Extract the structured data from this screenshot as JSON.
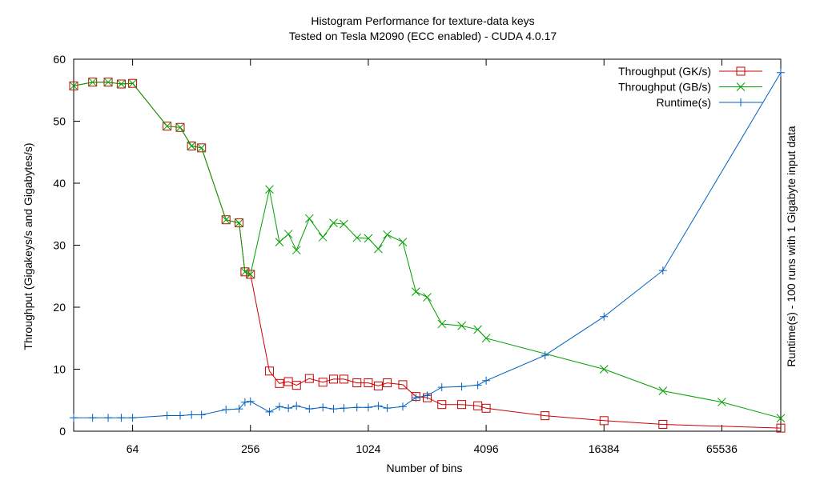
{
  "chart_data": {
    "type": "line",
    "title": "Histogram Performance for texture-data keys",
    "subtitle": "Tested on Tesla M2090 (ECC enabled) - CUDA 4.0.17",
    "xlabel": "Number of bins",
    "ylabel": "Throughput (Gigakeys/s and Gigabytes/s)",
    "y2label": "Runtime(s) - 100 runs with 1 Gigabyte input data",
    "x_scale": "log2",
    "xlim": [
      32,
      131072
    ],
    "ylim": [
      0,
      60
    ],
    "y2lim": [
      0,
      50
    ],
    "x_ticks": [
      {
        "value": 64,
        "label": "64"
      },
      {
        "value": 256,
        "label": "256"
      },
      {
        "value": 1024,
        "label": "1024"
      },
      {
        "value": 4096,
        "label": "4096"
      },
      {
        "value": 16384,
        "label": "16384"
      },
      {
        "value": 65536,
        "label": "65536"
      }
    ],
    "y_ticks": [
      {
        "value": 0,
        "label": "0"
      },
      {
        "value": 10,
        "label": "10"
      },
      {
        "value": 20,
        "label": "20"
      },
      {
        "value": 30,
        "label": "30"
      },
      {
        "value": 40,
        "label": "40"
      },
      {
        "value": 50,
        "label": "50"
      },
      {
        "value": 60,
        "label": "60"
      }
    ],
    "grid": false,
    "legend_position": "top-right",
    "series": [
      {
        "name": "Throughput (GK/s)",
        "axis": "y1",
        "marker": "square",
        "color": "#cc0000",
        "points": [
          [
            32,
            55.7
          ],
          [
            40,
            56.3
          ],
          [
            48,
            56.3
          ],
          [
            56,
            56.0
          ],
          [
            64,
            56.1
          ],
          [
            96,
            49.2
          ],
          [
            112,
            49.0
          ],
          [
            128,
            46.0
          ],
          [
            144,
            45.7
          ],
          [
            192,
            34.1
          ],
          [
            224,
            33.6
          ],
          [
            240,
            25.7
          ],
          [
            256,
            25.3
          ],
          [
            320,
            9.7
          ],
          [
            360,
            7.7
          ],
          [
            400,
            8.0
          ],
          [
            440,
            7.4
          ],
          [
            512,
            8.5
          ],
          [
            600,
            7.9
          ],
          [
            680,
            8.4
          ],
          [
            768,
            8.4
          ],
          [
            896,
            7.8
          ],
          [
            1024,
            7.8
          ],
          [
            1152,
            7.3
          ],
          [
            1280,
            7.8
          ],
          [
            1536,
            7.5
          ],
          [
            1792,
            5.6
          ],
          [
            2048,
            5.4
          ],
          [
            2432,
            4.3
          ],
          [
            3072,
            4.3
          ],
          [
            3712,
            4.1
          ],
          [
            4096,
            3.7
          ],
          [
            8192,
            2.5
          ],
          [
            16384,
            1.7
          ],
          [
            32768,
            1.1
          ],
          [
            131072,
            0.5
          ]
        ]
      },
      {
        "name": "Throughput (GB/s)",
        "axis": "y1",
        "marker": "x",
        "color": "#00a000",
        "points": [
          [
            32,
            55.7
          ],
          [
            40,
            56.3
          ],
          [
            48,
            56.3
          ],
          [
            56,
            56.0
          ],
          [
            64,
            56.1
          ],
          [
            96,
            49.2
          ],
          [
            112,
            49.0
          ],
          [
            128,
            46.0
          ],
          [
            144,
            45.7
          ],
          [
            192,
            34.1
          ],
          [
            224,
            33.6
          ],
          [
            240,
            25.7
          ],
          [
            256,
            25.3
          ],
          [
            320,
            39.0
          ],
          [
            360,
            30.5
          ],
          [
            400,
            31.8
          ],
          [
            440,
            29.2
          ],
          [
            512,
            34.3
          ],
          [
            600,
            31.3
          ],
          [
            680,
            33.6
          ],
          [
            768,
            33.4
          ],
          [
            896,
            31.2
          ],
          [
            1024,
            31.1
          ],
          [
            1152,
            29.4
          ],
          [
            1280,
            31.7
          ],
          [
            1536,
            30.5
          ],
          [
            1792,
            22.5
          ],
          [
            2048,
            21.6
          ],
          [
            2432,
            17.3
          ],
          [
            3072,
            17.0
          ],
          [
            3712,
            16.4
          ],
          [
            4096,
            15.0
          ],
          [
            16384,
            10.0
          ],
          [
            32768,
            6.5
          ],
          [
            65536,
            4.7
          ],
          [
            131072,
            2.1
          ]
        ]
      },
      {
        "name": "Runtime(s)",
        "axis": "y2",
        "marker": "plus",
        "color": "#0060c0",
        "points": [
          [
            32,
            1.8
          ],
          [
            40,
            1.8
          ],
          [
            48,
            1.8
          ],
          [
            56,
            1.8
          ],
          [
            64,
            1.8
          ],
          [
            96,
            2.1
          ],
          [
            112,
            2.1
          ],
          [
            128,
            2.2
          ],
          [
            144,
            2.2
          ],
          [
            192,
            2.9
          ],
          [
            224,
            3.0
          ],
          [
            240,
            3.9
          ],
          [
            256,
            4.0
          ],
          [
            320,
            2.6
          ],
          [
            360,
            3.3
          ],
          [
            400,
            3.1
          ],
          [
            440,
            3.4
          ],
          [
            512,
            3.0
          ],
          [
            600,
            3.2
          ],
          [
            680,
            3.0
          ],
          [
            768,
            3.1
          ],
          [
            896,
            3.2
          ],
          [
            1024,
            3.2
          ],
          [
            1152,
            3.4
          ],
          [
            1280,
            3.1
          ],
          [
            1536,
            3.3
          ],
          [
            1792,
            4.5
          ],
          [
            2048,
            4.8
          ],
          [
            2432,
            5.9
          ],
          [
            3072,
            6.0
          ],
          [
            3712,
            6.2
          ],
          [
            4096,
            6.8
          ],
          [
            8192,
            10.2
          ],
          [
            16384,
            15.4
          ],
          [
            32768,
            21.6
          ],
          [
            131072,
            48.2
          ]
        ]
      }
    ]
  }
}
